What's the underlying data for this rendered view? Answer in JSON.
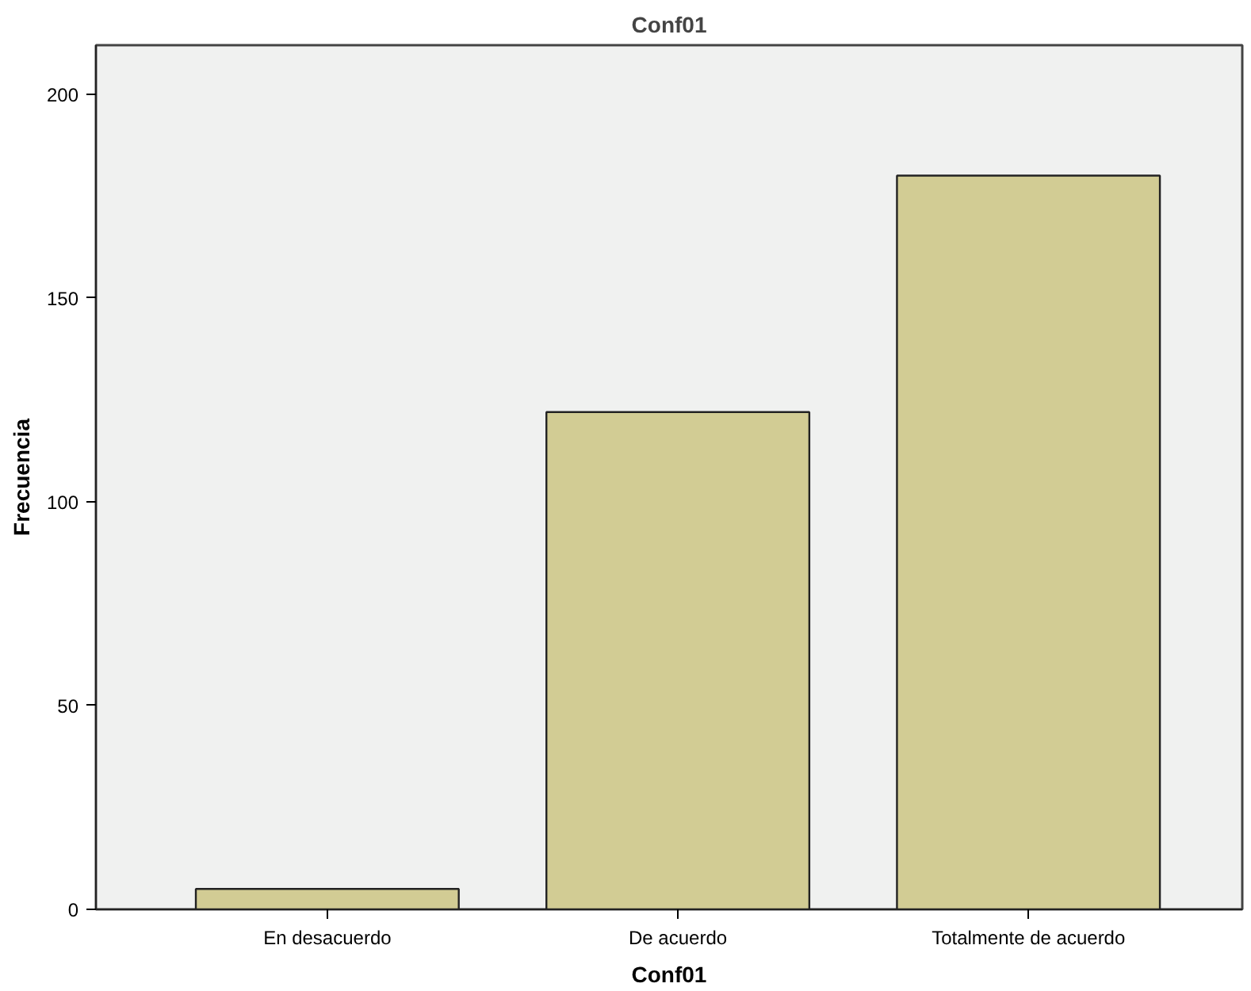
{
  "chart_data": {
    "type": "bar",
    "title": "Conf01",
    "xlabel": "Conf01",
    "ylabel": "Frecuencia",
    "categories": [
      "En desacuerdo",
      "De acuerdo",
      "Totalmente de acuerdo"
    ],
    "values": [
      5,
      122,
      180
    ],
    "color": "#d2cc94",
    "ylim": [
      0,
      212
    ],
    "yticks": [
      0,
      50,
      100,
      150,
      200
    ],
    "grid": false
  }
}
